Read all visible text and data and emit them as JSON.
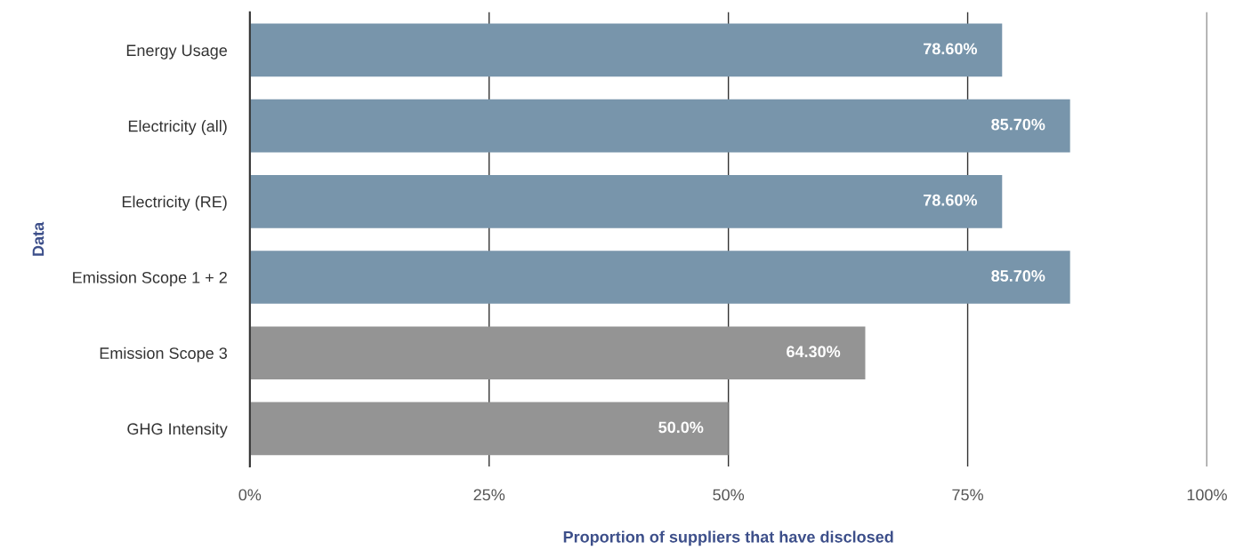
{
  "chart_data": {
    "type": "bar",
    "orientation": "horizontal",
    "xlabel": "Proportion of suppliers that have disclosed",
    "ylabel": "Data",
    "categories": [
      "Energy Usage",
      "Electricity (all)",
      "Electricity (RE)",
      "Emission Scope 1 + 2",
      "Emission Scope 3",
      "GHG Intensity"
    ],
    "values": [
      78.6,
      85.7,
      78.6,
      85.7,
      64.3,
      50.0
    ],
    "colors": [
      "#7895ab",
      "#7895ab",
      "#7895ab",
      "#7895ab",
      "#949494",
      "#949494"
    ],
    "value_labels": [
      "78.60%",
      "85.70%",
      "78.60%",
      "85.70%",
      "64.30%",
      "50.0%"
    ],
    "xlim": [
      0,
      100
    ],
    "xticks": [
      {
        "value": 0,
        "label": "0%"
      },
      {
        "value": 25,
        "label": "25%"
      },
      {
        "value": 50,
        "label": "50%"
      },
      {
        "value": 75,
        "label": "75%"
      },
      {
        "value": 100,
        "label": "100%"
      }
    ],
    "grid": "x",
    "legend": false
  }
}
